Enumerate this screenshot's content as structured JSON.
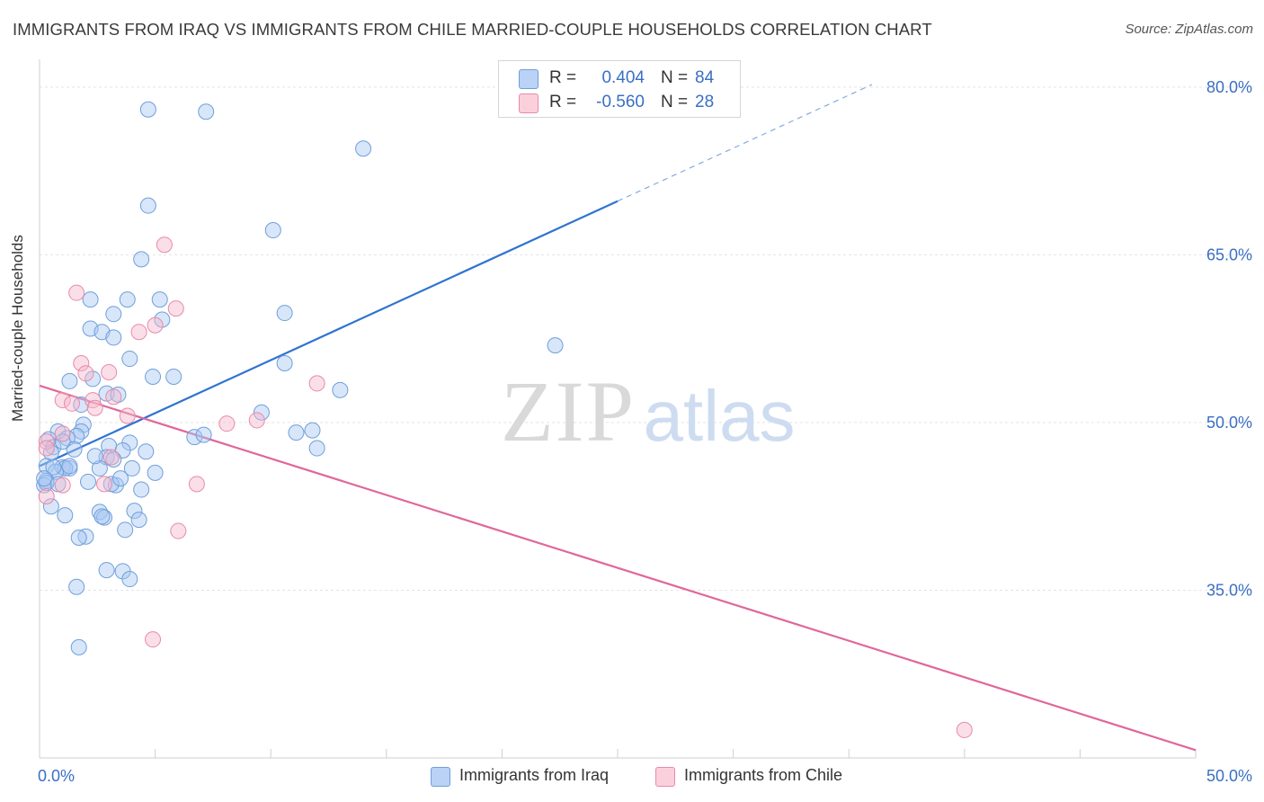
{
  "header": {
    "title": "IMMIGRANTS FROM IRAQ VS IMMIGRANTS FROM CHILE MARRIED-COUPLE HOUSEHOLDS CORRELATION CHART",
    "source": "Source: ZipAtlas.com"
  },
  "watermark": {
    "zip": "ZIP",
    "atlas": "atlas"
  },
  "legend": {
    "rows": [
      {
        "r_label": "R =",
        "r_value": "0.404",
        "n_label": "N =",
        "n_value": "84"
      },
      {
        "r_label": "R =",
        "r_value": "-0.560",
        "n_label": "N =",
        "n_value": "28"
      }
    ]
  },
  "bottom_legend": [
    "Immigrants from Iraq",
    "Immigrants from Chile"
  ],
  "colors": {
    "iraq_fill": "#a9c8f2",
    "iraq_stroke": "#6f9fdb",
    "iraq_line": "#2f73d0",
    "chile_fill": "#f7b9cc",
    "chile_stroke": "#e88aa8",
    "chile_line": "#e0679a",
    "tick_label": "#3a6fc4",
    "grid": "#e4e4e4"
  },
  "chart_data": {
    "type": "scatter",
    "title": "IMMIGRANTS FROM IRAQ VS IMMIGRANTS FROM CHILE MARRIED-COUPLE HOUSEHOLDS CORRELATION CHART",
    "xlabel": "",
    "ylabel": "Married-couple Households",
    "xlim": [
      0,
      50
    ],
    "ylim": [
      20,
      82
    ],
    "x_tick_labels": [
      "0.0%",
      "50.0%"
    ],
    "y_ticks": [
      35,
      50,
      65,
      80
    ],
    "y_tick_labels": [
      "35.0%",
      "50.0%",
      "65.0%",
      "80.0%"
    ],
    "grid": true,
    "legend_position": "top-center",
    "series": [
      {
        "name": "Immigrants from Iraq",
        "r": 0.404,
        "n": 84,
        "trend": {
          "x0": 0.0,
          "y0": 46.1,
          "x1": 25.0,
          "y1": 69.8,
          "dashed_to_x": 36.0
        },
        "points": [
          [
            4.7,
            78.0
          ],
          [
            7.2,
            77.8
          ],
          [
            14.0,
            74.5
          ],
          [
            4.7,
            69.4
          ],
          [
            10.1,
            67.2
          ],
          [
            4.4,
            64.6
          ],
          [
            2.2,
            61.0
          ],
          [
            3.8,
            61.0
          ],
          [
            5.2,
            61.0
          ],
          [
            10.6,
            59.8
          ],
          [
            3.2,
            59.7
          ],
          [
            5.3,
            59.2
          ],
          [
            2.2,
            58.4
          ],
          [
            2.7,
            58.1
          ],
          [
            3.2,
            57.6
          ],
          [
            22.3,
            56.9
          ],
          [
            3.9,
            55.7
          ],
          [
            10.6,
            55.3
          ],
          [
            4.9,
            54.1
          ],
          [
            5.8,
            54.1
          ],
          [
            1.3,
            53.7
          ],
          [
            2.3,
            53.9
          ],
          [
            13.0,
            52.9
          ],
          [
            2.9,
            52.6
          ],
          [
            3.4,
            52.5
          ],
          [
            1.8,
            51.6
          ],
          [
            9.6,
            50.9
          ],
          [
            1.9,
            49.8
          ],
          [
            1.8,
            49.2
          ],
          [
            0.8,
            49.2
          ],
          [
            11.8,
            49.3
          ],
          [
            11.1,
            49.1
          ],
          [
            1.6,
            48.8
          ],
          [
            0.4,
            48.5
          ],
          [
            6.7,
            48.7
          ],
          [
            7.1,
            48.9
          ],
          [
            1.2,
            48.6
          ],
          [
            3.0,
            47.9
          ],
          [
            3.9,
            48.2
          ],
          [
            0.6,
            47.8
          ],
          [
            1.5,
            47.6
          ],
          [
            3.6,
            47.5
          ],
          [
            4.6,
            47.4
          ],
          [
            12.0,
            47.7
          ],
          [
            0.5,
            47.3
          ],
          [
            2.9,
            46.9
          ],
          [
            3.2,
            46.7
          ],
          [
            0.3,
            46.1
          ],
          [
            1.0,
            46.0
          ],
          [
            1.3,
            45.9
          ],
          [
            1.1,
            45.9
          ],
          [
            2.6,
            45.9
          ],
          [
            4.0,
            45.9
          ],
          [
            5.0,
            45.5
          ],
          [
            0.7,
            45.6
          ],
          [
            1.3,
            46.1
          ],
          [
            0.3,
            44.8
          ],
          [
            0.2,
            44.4
          ],
          [
            0.3,
            44.6
          ],
          [
            0.8,
            44.5
          ],
          [
            2.1,
            44.7
          ],
          [
            3.3,
            44.4
          ],
          [
            3.1,
            44.5
          ],
          [
            4.4,
            44.0
          ],
          [
            0.5,
            42.5
          ],
          [
            4.1,
            42.1
          ],
          [
            2.6,
            42.0
          ],
          [
            2.8,
            41.5
          ],
          [
            1.1,
            41.7
          ],
          [
            2.7,
            41.6
          ],
          [
            4.3,
            41.3
          ],
          [
            3.7,
            40.4
          ],
          [
            2.0,
            39.8
          ],
          [
            1.7,
            39.7
          ],
          [
            2.9,
            36.8
          ],
          [
            3.6,
            36.7
          ],
          [
            3.9,
            36.0
          ],
          [
            1.6,
            35.3
          ],
          [
            1.7,
            29.9
          ],
          [
            0.2,
            45.0
          ],
          [
            0.6,
            46.0
          ],
          [
            1.0,
            48.3
          ],
          [
            2.4,
            47.0
          ],
          [
            3.5,
            45.0
          ]
        ]
      },
      {
        "name": "Immigrants from Chile",
        "r": -0.56,
        "n": 28,
        "trend": {
          "x0": 0.0,
          "y0": 53.3,
          "x1": 50.0,
          "y1": 20.7
        },
        "points": [
          [
            5.4,
            65.9
          ],
          [
            1.6,
            61.6
          ],
          [
            5.9,
            60.2
          ],
          [
            5.0,
            58.7
          ],
          [
            4.3,
            58.1
          ],
          [
            1.8,
            55.3
          ],
          [
            3.0,
            54.5
          ],
          [
            12.0,
            53.5
          ],
          [
            2.0,
            54.4
          ],
          [
            3.2,
            52.3
          ],
          [
            1.0,
            52.0
          ],
          [
            2.3,
            52.0
          ],
          [
            1.4,
            51.7
          ],
          [
            2.4,
            51.3
          ],
          [
            3.8,
            50.6
          ],
          [
            9.4,
            50.2
          ],
          [
            8.1,
            49.9
          ],
          [
            0.3,
            48.3
          ],
          [
            1.0,
            49.0
          ],
          [
            0.3,
            47.7
          ],
          [
            3.1,
            46.9
          ],
          [
            6.8,
            44.5
          ],
          [
            2.8,
            44.5
          ],
          [
            1.0,
            44.4
          ],
          [
            0.3,
            43.4
          ],
          [
            6.0,
            40.3
          ],
          [
            4.9,
            30.6
          ],
          [
            40.0,
            22.5
          ]
        ]
      }
    ]
  }
}
